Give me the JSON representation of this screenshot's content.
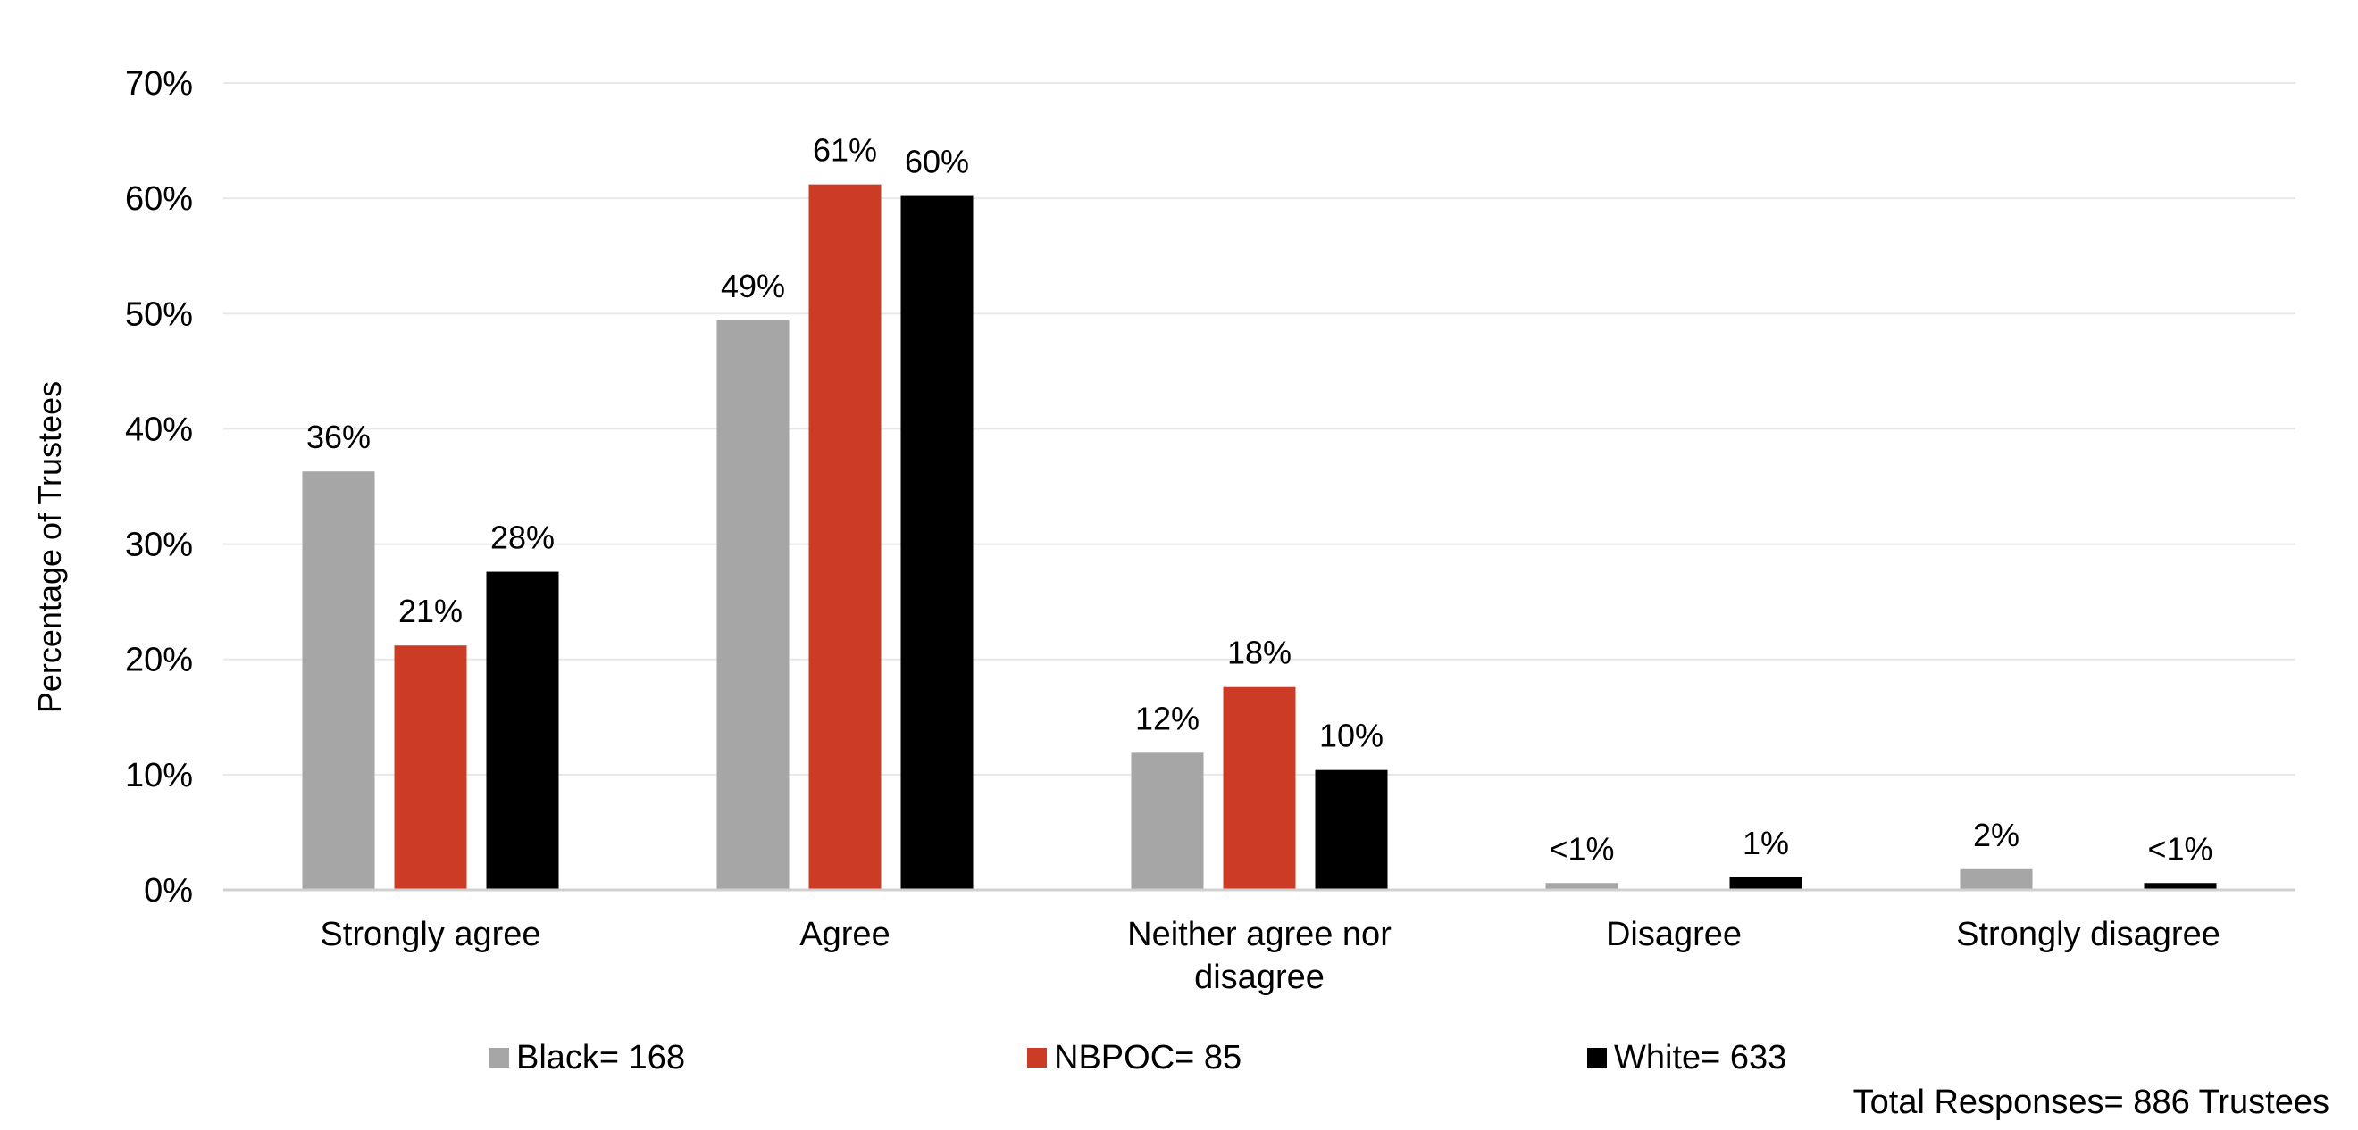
{
  "chart_data": {
    "type": "bar",
    "title": "",
    "ylabel": "Percentage of Trustees",
    "xlabel": "",
    "ylim": [
      0,
      70
    ],
    "y_ticks": [
      {
        "value": 0,
        "label": "0%"
      },
      {
        "value": 10,
        "label": "10%"
      },
      {
        "value": 20,
        "label": "20%"
      },
      {
        "value": 30,
        "label": "30%"
      },
      {
        "value": 40,
        "label": "40%"
      },
      {
        "value": 50,
        "label": "50%"
      },
      {
        "value": 60,
        "label": "60%"
      },
      {
        "value": 70,
        "label": "70%"
      }
    ],
    "grid": true,
    "legend_position": "bottom",
    "categories": [
      [
        "Strongly agree"
      ],
      [
        "Agree"
      ],
      [
        "Neither agree nor",
        "disagree"
      ],
      [
        "Disagree"
      ],
      [
        "Strongly disagree"
      ]
    ],
    "series": [
      {
        "name": "Black= 168",
        "color": "#a6a6a6",
        "values": [
          36.3,
          49.4,
          11.9,
          0.6,
          1.8
        ],
        "labels": [
          "36%",
          "49%",
          "12%",
          "<1%",
          "2%"
        ]
      },
      {
        "name": "NBPOC= 85",
        "color": "#cc3b26",
        "values": [
          21.2,
          61.2,
          17.6,
          0,
          0
        ],
        "labels": [
          "21%",
          "61%",
          "18%",
          "",
          ""
        ]
      },
      {
        "name": "White= 633",
        "color": "#000000",
        "values": [
          27.6,
          60.2,
          10.4,
          1.1,
          0.6
        ],
        "labels": [
          "28%",
          "60%",
          "10%",
          "1%",
          "<1%"
        ]
      }
    ],
    "footnote": "Total Responses= 886 Trustees"
  }
}
